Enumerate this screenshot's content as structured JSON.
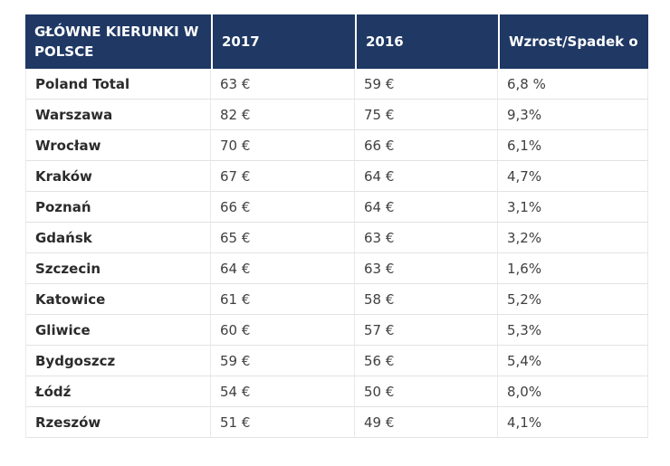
{
  "colors": {
    "header_bg": "#1f3864",
    "header_text": "#ffffff",
    "row_border": "#e2e2e2",
    "col_border": "#e9e9e9",
    "city_text": "#2b2b2b",
    "value_text": "#404040",
    "page_bg": "#ffffff"
  },
  "table": {
    "columns": [
      {
        "label": "GŁÓWNE KIERUNKI W\n POLSCE"
      },
      {
        "label": "2017"
      },
      {
        "label": "2016"
      },
      {
        "label": "Wzrost/Spadek o"
      }
    ],
    "rows": [
      [
        "Poland Total",
        "63 €",
        "59 €",
        "6,8 %"
      ],
      [
        "Warszawa",
        "82 €",
        "75 €",
        "9,3%"
      ],
      [
        "Wrocław",
        "70 €",
        "66 €",
        "6,1%"
      ],
      [
        "Kraków",
        "67 €",
        "64 €",
        "4,7%"
      ],
      [
        "Poznań",
        "66 €",
        "64 €",
        "3,1%"
      ],
      [
        "Gdańsk",
        "65 €",
        "63 €",
        "3,2%"
      ],
      [
        "Szczecin",
        "64 €",
        "63 €",
        "1,6%"
      ],
      [
        "Katowice",
        "61 €",
        "58 €",
        "5,2%"
      ],
      [
        "Gliwice",
        "60 €",
        "57 €",
        "5,3%"
      ],
      [
        "Bydgoszcz",
        "59 €",
        "56 €",
        "5,4%"
      ],
      [
        "Łódź",
        "54 €",
        "50 €",
        "8,0%"
      ],
      [
        "Rzeszów",
        "51 €",
        "49 €",
        "4,1%"
      ]
    ]
  },
  "chart_data": {
    "type": "table",
    "title": "GŁÓWNE KIERUNKI W POLSCE",
    "columns": [
      "GŁÓWNE KIERUNKI W POLSCE",
      "2017",
      "2016",
      "Wzrost/Spadek o"
    ],
    "categories": [
      "Poland Total",
      "Warszawa",
      "Wrocław",
      "Kraków",
      "Poznań",
      "Gdańsk",
      "Szczecin",
      "Katowice",
      "Gliwice",
      "Bydgoszcz",
      "Łódź",
      "Rzeszów"
    ],
    "series": [
      {
        "name": "2017 (EUR)",
        "values": [
          63,
          82,
          70,
          67,
          66,
          65,
          64,
          61,
          60,
          59,
          54,
          51
        ]
      },
      {
        "name": "2016 (EUR)",
        "values": [
          59,
          75,
          66,
          64,
          64,
          63,
          63,
          58,
          57,
          56,
          50,
          49
        ]
      },
      {
        "name": "Wzrost/Spadek o (%)",
        "values": [
          6.8,
          9.3,
          6.1,
          4.7,
          3.1,
          3.2,
          1.6,
          5.2,
          5.3,
          5.4,
          8.0,
          4.1
        ]
      }
    ]
  }
}
